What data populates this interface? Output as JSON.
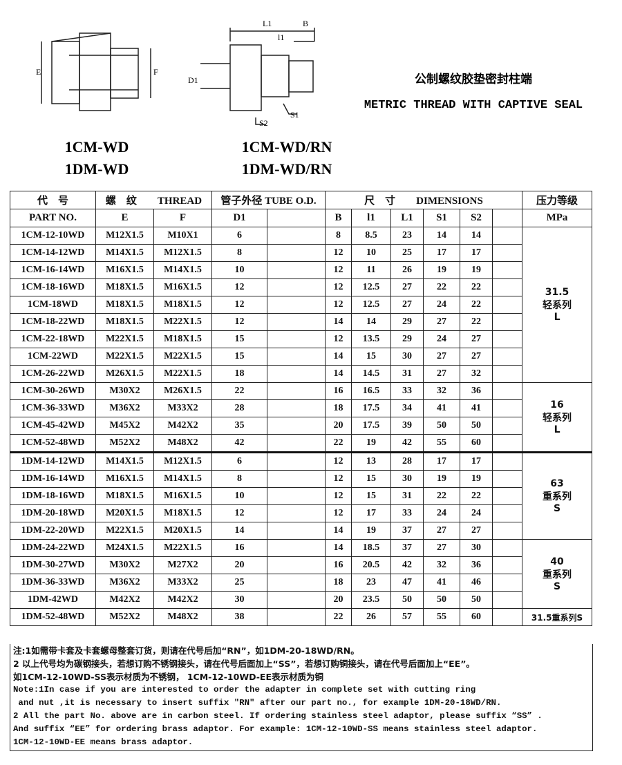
{
  "drawings": {
    "left": {
      "labels": [
        "E",
        "F"
      ]
    },
    "middle": {
      "labels": [
        "L1",
        "B",
        "l1",
        "D1",
        "S2",
        "S1"
      ]
    }
  },
  "title": {
    "cn": "公制螺纹胶垫密封柱端",
    "en": "METRIC THREAD WITH CAPTIVE SEAL"
  },
  "models": {
    "left": [
      "1CM-WD",
      "1DM-WD"
    ],
    "right": [
      "1CM-WD/RN",
      "1DM-WD/RN"
    ]
  },
  "table": {
    "header1": [
      {
        "text": "代　号",
        "cols": 1
      },
      {
        "text": "螺　纹　　THREAD",
        "cols": 2
      },
      {
        "text": "管子外径 TUBE O.D.",
        "cols": 2
      },
      {
        "text": "尺　寸　　DIMENSIONS",
        "cols": 6
      },
      {
        "text": "压力等级",
        "cols": 1
      }
    ],
    "header2": [
      "PART  NO.",
      "E",
      "F",
      "D1",
      null,
      "B",
      "l1",
      "L1",
      "S1",
      "S2",
      null,
      "MPa"
    ],
    "rows": [
      {
        "cells": [
          "1CM-12-10WD",
          "M12X1.5",
          "M10X1",
          6,
          null,
          8,
          8.5,
          23,
          14,
          14,
          null
        ],
        "pressure": [
          "31.5",
          "轻系列",
          "L"
        ]
      },
      {
        "cells": [
          "1CM-14-12WD",
          "M14X1.5",
          "M12X1.5",
          8,
          null,
          12,
          10,
          25,
          17,
          17,
          null
        ],
        "pressure": null
      },
      {
        "cells": [
          "1CM-16-14WD",
          "M16X1.5",
          "M14X1.5",
          10,
          null,
          12,
          11,
          26,
          19,
          19,
          null
        ],
        "pressure": null
      },
      {
        "cells": [
          "1CM-18-16WD",
          "M18X1.5",
          "M16X1.5",
          12,
          null,
          12,
          12.5,
          27,
          22,
          22,
          null
        ],
        "pressure": null
      },
      {
        "cells": [
          "1CM-18WD",
          "M18X1.5",
          "M18X1.5",
          12,
          null,
          12,
          12.5,
          27,
          24,
          22,
          null
        ],
        "pressure": null
      },
      {
        "cells": [
          "1CM-18-22WD",
          "M18X1.5",
          "M22X1.5",
          12,
          null,
          14,
          14,
          29,
          27,
          22,
          null
        ],
        "pressure": null
      },
      {
        "cells": [
          "1CM-22-18WD",
          "M22X1.5",
          "M18X1.5",
          15,
          null,
          12,
          13.5,
          29,
          24,
          27,
          null
        ],
        "pressure": null
      },
      {
        "cells": [
          "1CM-22WD",
          "M22X1.5",
          "M22X1.5",
          15,
          null,
          14,
          15,
          30,
          27,
          27,
          null
        ],
        "pressure": null
      },
      {
        "cells": [
          "1CM-26-22WD",
          "M26X1.5",
          "M22X1.5",
          18,
          null,
          14,
          14.5,
          31,
          27,
          32,
          null
        ],
        "pressure": null
      },
      {
        "cells": [
          "1CM-30-26WD",
          "M30X2",
          "M26X1.5",
          22,
          null,
          16,
          16.5,
          33,
          32,
          36,
          null
        ],
        "pressure": [
          "16",
          "轻系列",
          "L"
        ]
      },
      {
        "cells": [
          "1CM-36-33WD",
          "M36X2",
          "M33X2",
          28,
          null,
          18,
          17.5,
          34,
          41,
          41,
          null
        ],
        "pressure": null
      },
      {
        "cells": [
          "1CM-45-42WD",
          "M45X2",
          "M42X2",
          35,
          null,
          20,
          17.5,
          39,
          50,
          50,
          null
        ],
        "pressure": null
      },
      {
        "cells": [
          "1CM-52-48WD",
          "M52X2",
          "M48X2",
          42,
          null,
          22,
          19,
          42,
          55,
          60,
          null
        ],
        "pressure": null
      },
      {
        "cells": [
          "1DM-14-12WD",
          "M14X1.5",
          "M12X1.5",
          6,
          null,
          12,
          13,
          28,
          17,
          17,
          null
        ],
        "pressure": [
          "63",
          "重系列",
          "S"
        ]
      },
      {
        "cells": [
          "1DM-16-14WD",
          "M16X1.5",
          "M14X1.5",
          8,
          null,
          12,
          15,
          30,
          19,
          19,
          null
        ],
        "pressure": null
      },
      {
        "cells": [
          "1DM-18-16WD",
          "M18X1.5",
          "M16X1.5",
          10,
          null,
          12,
          15,
          31,
          22,
          22,
          null
        ],
        "pressure": null
      },
      {
        "cells": [
          "1DM-20-18WD",
          "M20X1.5",
          "M18X1.5",
          12,
          null,
          12,
          17,
          33,
          24,
          24,
          null
        ],
        "pressure": null
      },
      {
        "cells": [
          "1DM-22-20WD",
          "M22X1.5",
          "M20X1.5",
          14,
          null,
          14,
          19,
          37,
          27,
          27,
          null
        ],
        "pressure": null
      },
      {
        "cells": [
          "1DM-24-22WD",
          "M24X1.5",
          "M22X1.5",
          16,
          null,
          14,
          18.5,
          37,
          27,
          30,
          null
        ],
        "pressure": [
          "40",
          "重系列",
          "S"
        ]
      },
      {
        "cells": [
          "1DM-30-27WD",
          "M30X2",
          "M27X2",
          20,
          null,
          16,
          20.5,
          42,
          32,
          36,
          null
        ],
        "pressure": null
      },
      {
        "cells": [
          "1DM-36-33WD",
          "M36X2",
          "M33X2",
          25,
          null,
          18,
          23,
          47,
          41,
          46,
          null
        ],
        "pressure": null
      },
      {
        "cells": [
          "1DM-42WD",
          "M42X2",
          "M42X2",
          30,
          null,
          20,
          23.5,
          50,
          50,
          50,
          null
        ],
        "pressure": null
      },
      {
        "cells": [
          "1DM-52-48WD",
          "M52X2",
          "M48X2",
          38,
          null,
          22,
          26,
          57,
          55,
          60,
          null
        ],
        "pressure": [
          "31.5重系列S"
        ]
      }
    ]
  },
  "notes": [
    "注:1如需带卡套及卡套螺母整套订货，则请在代号后加“RN”，如1DM-20-18WD/RN。",
    "2 以上代号均为碳钢接头，若想订购不锈钢接头，请在代号后面加上“SS”，若想订购铜接头，请在代号后面加上“EE”。",
    "如1CM-12-10WD-SS表示材质为不锈钢， 1CM-12-10WD-EE表示材质为铜",
    "Note:1In case if you are interested to order the adapter in complete set with cutting ring",
    " and nut ,it is necessary to insert suffix \"RN\" after our part no., for example 1DM-20-18WD/RN.",
    "2 All the part No. above are in carbon steel. If ordering stainless steel adaptor, please suffix “SS” .",
    "And suffix “EE” for ordering brass adaptor. For example: 1CM-12-10WD-SS means stainless steel adaptor.",
    "1CM-12-10WD-EE means brass adaptor."
  ]
}
